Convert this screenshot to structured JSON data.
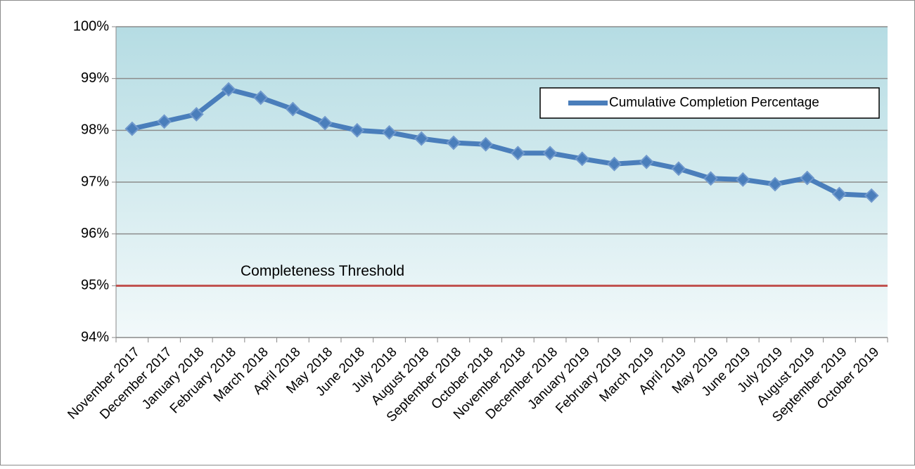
{
  "chart_data": {
    "type": "line",
    "categories": [
      "November 2017",
      "December 2017",
      "January 2018",
      "February 2018",
      "March 2018",
      "April 2018",
      "May 2018",
      "June 2018",
      "July 2018",
      "August 2018",
      "September 2018",
      "October 2018",
      "November 2018",
      "December 2018",
      "January 2019",
      "February 2019",
      "March 2019",
      "April 2019",
      "May 2019",
      "June 2019",
      "July 2019",
      "August 2019",
      "September 2019",
      "October 2019"
    ],
    "series": [
      {
        "name": "Cumulative Completion Percentage",
        "color": "#4a7ebb",
        "values": [
          98.03,
          98.17,
          98.31,
          98.79,
          98.63,
          98.41,
          98.14,
          98.0,
          97.96,
          97.84,
          97.76,
          97.73,
          97.56,
          97.56,
          97.45,
          97.35,
          97.39,
          97.26,
          97.07,
          97.05,
          96.96,
          97.08,
          96.77,
          96.74
        ]
      }
    ],
    "ylim": [
      94,
      100
    ],
    "yticks": [
      {
        "value": 94,
        "label": "94%"
      },
      {
        "value": 95,
        "label": "95%"
      },
      {
        "value": 96,
        "label": "96%"
      },
      {
        "value": 97,
        "label": "97%"
      },
      {
        "value": 98,
        "label": "98%"
      },
      {
        "value": 99,
        "label": "99%"
      },
      {
        "value": 100,
        "label": "100%"
      }
    ],
    "grid": true,
    "legend": "upper right",
    "threshold": {
      "label": "Completeness Threshold",
      "value": 95,
      "color": "#c0504d"
    }
  }
}
